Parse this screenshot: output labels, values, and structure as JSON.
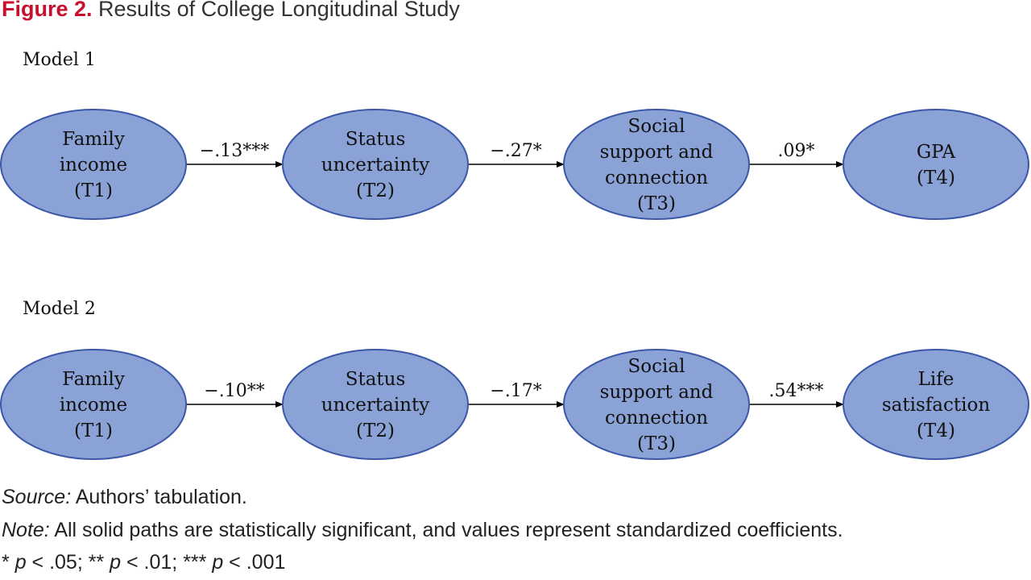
{
  "figure": {
    "label": "Figure 2.",
    "title": "Results of College Longitudinal Study"
  },
  "models": [
    {
      "label": "Model 1",
      "nodes": [
        {
          "lines": [
            "Family",
            "income",
            "(T1)"
          ]
        },
        {
          "lines": [
            "Status",
            "uncertainty",
            "(T2)"
          ]
        },
        {
          "lines": [
            "Social",
            "support and",
            "connection",
            "(T3)"
          ]
        },
        {
          "lines": [
            "GPA",
            "(T4)"
          ]
        }
      ],
      "paths": [
        "−.13***",
        "−.27*",
        ".09*"
      ]
    },
    {
      "label": "Model 2",
      "nodes": [
        {
          "lines": [
            "Family",
            "income",
            "(T1)"
          ]
        },
        {
          "lines": [
            "Status",
            "uncertainty",
            "(T2)"
          ]
        },
        {
          "lines": [
            "Social",
            "support and",
            "connection",
            "(T3)"
          ]
        },
        {
          "lines": [
            "Life",
            "satisfaction",
            "(T4)"
          ]
        }
      ],
      "paths": [
        "−.10**",
        "−.17*",
        ".54***"
      ]
    }
  ],
  "footer": {
    "source_label": "Source:",
    "source_text": " Authors’ tabulation.",
    "note_label": "Note:",
    "note_text": " All solid paths are statistically significant, and values represent standardized coefficients.",
    "significance": [
      {
        "stars": "* ",
        "p": "p",
        "value": " < .05; "
      },
      {
        "stars": "** ",
        "p": "p",
        "value": " < .01; "
      },
      {
        "stars": "*** ",
        "p": "p",
        "value": " < .001"
      }
    ]
  },
  "colors": {
    "node_fill": "#8aa2d6",
    "node_stroke": "#3b57a8",
    "figure_label": "#c8102e"
  }
}
